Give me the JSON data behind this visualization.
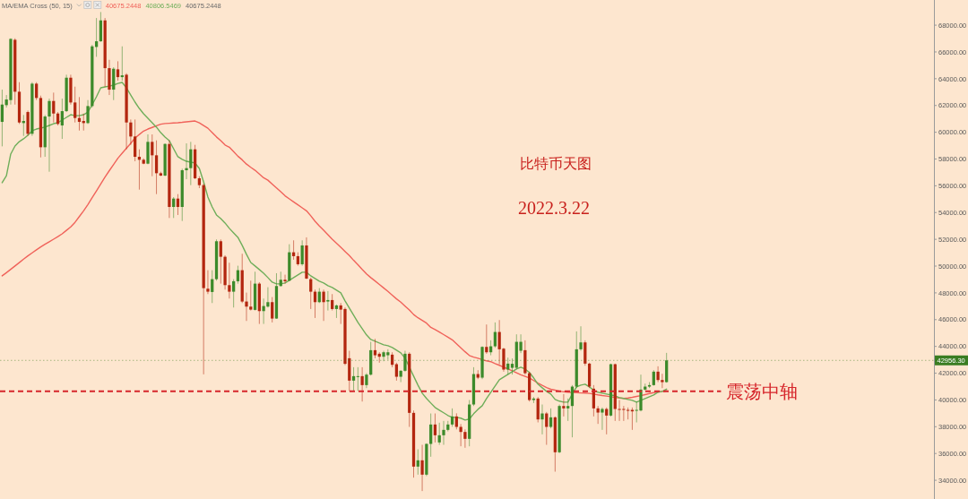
{
  "chart_data": {
    "type": "candlestick",
    "title": "比特币天图",
    "subtitle": "2022.3.22",
    "annotations": [
      "MA/EMA Cross (50, 15)",
      "40675.2448",
      "40806.5469",
      "40675.2448"
    ],
    "categories": [
      null,
      null,
      null,
      null,
      null,
      null,
      null,
      null,
      null,
      null,
      null,
      null,
      null,
      null,
      null,
      null,
      null,
      null,
      null,
      null,
      null,
      null,
      null,
      null,
      null,
      null,
      null,
      null,
      null,
      null,
      null,
      null,
      null,
      null,
      null,
      null,
      null,
      null,
      null,
      null,
      null,
      null,
      null,
      null,
      null,
      null,
      null,
      null,
      null,
      null,
      null,
      null,
      null,
      null,
      null,
      null,
      null,
      null,
      null,
      null,
      null,
      null,
      null,
      null,
      null,
      null,
      null,
      null,
      null,
      null,
      null,
      null,
      null,
      null,
      null,
      null,
      null,
      null,
      null,
      null,
      null,
      null,
      null,
      null,
      null,
      null,
      null,
      null,
      null,
      null,
      null,
      null,
      null,
      null,
      null,
      null,
      null,
      null,
      null,
      null,
      null,
      null,
      null,
      null,
      null,
      null,
      null,
      null,
      null,
      null,
      null,
      null,
      null,
      null,
      null,
      null,
      null,
      null,
      null,
      null,
      null,
      null,
      null,
      null,
      null,
      null,
      null,
      null,
      null,
      null,
      null,
      null,
      null,
      null,
      null,
      null,
      null,
      null,
      null,
      null,
      null,
      null,
      null,
      null,
      null,
      null,
      null,
      null,
      null,
      null,
      null,
      null,
      null,
      null,
      null,
      null
    ],
    "ylim": [
      32600,
      69880
    ],
    "yticks": [
      {
        "value": 34000,
        "label": "34000.00"
      },
      {
        "value": 36000,
        "label": "36000.00"
      },
      {
        "value": 38000,
        "label": "38000.00"
      },
      {
        "value": 40000,
        "label": "40000.00"
      },
      {
        "value": 42000,
        "label": "42000.00"
      },
      {
        "value": 44000,
        "label": "44000.00"
      },
      {
        "value": 46000,
        "label": "46000.00"
      },
      {
        "value": 48000,
        "label": "48000.00"
      },
      {
        "value": 50000,
        "label": "50000.00"
      },
      {
        "value": 52000,
        "label": "52000.00"
      },
      {
        "value": 54000,
        "label": "54000.00"
      },
      {
        "value": 56000,
        "label": "56000.00"
      },
      {
        "value": 58000,
        "label": "58000.00"
      },
      {
        "value": 60000,
        "label": "60000.00"
      },
      {
        "value": 62000,
        "label": "62000.00"
      },
      {
        "value": 64000,
        "label": "64000.00"
      },
      {
        "value": 66000,
        "label": "66000.00"
      },
      {
        "value": 68000,
        "label": "68000.00"
      }
    ],
    "ohlc": [
      [
        60775,
        63183,
        58946,
        62068
      ],
      [
        62023,
        62782,
        61845,
        62447
      ],
      [
        62403,
        67019,
        62068,
        66974
      ],
      [
        66907,
        67019,
        62068,
        63027
      ],
      [
        63027,
        63741,
        60619,
        60730
      ],
      [
        60685,
        61288,
        59727,
        60842
      ],
      [
        61510,
        61620,
        59727,
        59883
      ],
      [
        59883,
        63741,
        59727,
        63629
      ],
      [
        63629,
        63741,
        62403,
        62559
      ],
      [
        62559,
        62737,
        58121,
        58879
      ],
      [
        58879,
        61288,
        58166,
        61176
      ],
      [
        61176,
        62514,
        57051,
        62336
      ],
      [
        62336,
        62960,
        60730,
        61399
      ],
      [
        61399,
        61510,
        60507,
        60619
      ],
      [
        60507,
        62514,
        59504,
        61577
      ],
      [
        61577,
        64298,
        61510,
        64075
      ],
      [
        64075,
        64298,
        62068,
        62224
      ],
      [
        62224,
        63406,
        60730,
        61065
      ],
      [
        61065,
        62626,
        60128,
        60775
      ],
      [
        60842,
        61399,
        60128,
        60685
      ],
      [
        60685,
        62403,
        60619,
        61957
      ],
      [
        61957,
        66529,
        61845,
        66417
      ],
      [
        66372,
        68535,
        65636,
        66796
      ],
      [
        66796,
        68981,
        66752,
        68357
      ],
      [
        68357,
        68535,
        63406,
        64789
      ],
      [
        64789,
        65413,
        62782,
        63183
      ],
      [
        63183,
        64856,
        62403,
        64744
      ],
      [
        64700,
        65302,
        63852,
        64119
      ],
      [
        64119,
        66417,
        63852,
        64253
      ],
      [
        64298,
        64410,
        58723,
        60730
      ],
      [
        60730,
        60953,
        59058,
        59682
      ],
      [
        59682,
        60953,
        57831,
        58166
      ],
      [
        58166,
        58723,
        55713,
        57943
      ],
      [
        57943,
        58054,
        57608,
        57653
      ],
      [
        57653,
        59838,
        57608,
        59281
      ],
      [
        59281,
        59838,
        56716,
        58277
      ],
      [
        58277,
        59392,
        55378,
        56939
      ],
      [
        56939,
        57051,
        56716,
        56761
      ],
      [
        56761,
        59169,
        56716,
        59125
      ],
      [
        59125,
        59392,
        53594,
        54419
      ],
      [
        54419,
        55155,
        53594,
        55044
      ],
      [
        55044,
        55378,
        53817,
        54419
      ],
      [
        54419,
        57274,
        53371,
        57162
      ],
      [
        57162,
        59169,
        56493,
        57318
      ],
      [
        57318,
        59281,
        56047,
        58723
      ],
      [
        58723,
        59058,
        56493,
        56560
      ],
      [
        56560,
        56716,
        55824,
        56047
      ],
      [
        56047,
        56158,
        41913,
        48354
      ],
      [
        48311,
        49693,
        47909,
        48088
      ],
      [
        48066,
        49693,
        47240,
        49024
      ],
      [
        49024,
        51990,
        48913,
        51857
      ],
      [
        51857,
        51990,
        48690,
        50697
      ],
      [
        50697,
        50808,
        48244,
        48578
      ],
      [
        48578,
        50251,
        47575,
        48088
      ],
      [
        48088,
        49024,
        46906,
        48868
      ],
      [
        48868,
        50028,
        48690,
        49693
      ],
      [
        49693,
        50920,
        47240,
        47352
      ],
      [
        47352,
        48021,
        45902,
        46973
      ],
      [
        46973,
        48913,
        46683,
        46750
      ],
      [
        46728,
        49582,
        46683,
        48690
      ],
      [
        48690,
        48801,
        45679,
        46638
      ],
      [
        46638,
        47575,
        45679,
        47017
      ],
      [
        46973,
        48422,
        46906,
        47307
      ],
      [
        47307,
        47686,
        45791,
        46081
      ],
      [
        46081,
        49470,
        46059,
        48512
      ],
      [
        48512,
        49582,
        48467,
        48980
      ],
      [
        48980,
        49359,
        48690,
        48868
      ],
      [
        48913,
        51634,
        48868,
        51031
      ],
      [
        51031,
        51923,
        50474,
        50742
      ],
      [
        50742,
        51031,
        50028,
        50139
      ],
      [
        50139,
        51923,
        50028,
        51544
      ],
      [
        51544,
        52146,
        49024,
        49069
      ],
      [
        49024,
        49136,
        46794,
        48088
      ],
      [
        48088,
        48244,
        46125,
        47307
      ],
      [
        47307,
        48355,
        47240,
        48088
      ],
      [
        48088,
        48244,
        45902,
        47307
      ],
      [
        47352,
        48132,
        46683,
        47463
      ],
      [
        47463,
        47909,
        46683,
        46794
      ],
      [
        46794,
        47129,
        46125,
        47062
      ],
      [
        47062,
        47240,
        45679,
        46750
      ],
      [
        46796,
        46906,
        42600,
        42700
      ],
      [
        43116,
        43674,
        40663,
        41443
      ],
      [
        41443,
        42447,
        40663,
        41778
      ],
      [
        41733,
        42447,
        40663,
        41778
      ],
      [
        41778,
        42447,
        39882,
        41109
      ],
      [
        41109,
        42001,
        40886,
        41890
      ],
      [
        41890,
        44343,
        41822,
        43718
      ],
      [
        43718,
        44565,
        43116,
        43339
      ],
      [
        43451,
        43562,
        42782,
        43228
      ],
      [
        43228,
        43674,
        42894,
        43562
      ],
      [
        43339,
        43785,
        43005,
        43562
      ],
      [
        43384,
        43562,
        42447,
        42625
      ],
      [
        42670,
        42782,
        41443,
        41733
      ],
      [
        41733,
        42224,
        41332,
        42180
      ],
      [
        42180,
        43674,
        42113,
        43451
      ],
      [
        43451,
        43562,
        37987,
        39035
      ],
      [
        39035,
        39213,
        34196,
        35021
      ],
      [
        35021,
        36315,
        34419,
        35490
      ],
      [
        35490,
        36649,
        33193,
        34419
      ],
      [
        34419,
        36760,
        34308,
        36716
      ],
      [
        36716,
        38990,
        35757,
        38166
      ],
      [
        38166,
        38990,
        36827,
        37363
      ],
      [
        36827,
        38300,
        36649,
        37363
      ],
      [
        37363,
        38433,
        36649,
        37764
      ],
      [
        37764,
        38433,
        37653,
        38166
      ],
      [
        38166,
        39370,
        38000,
        38768
      ],
      [
        38768,
        39000,
        37800,
        37987
      ],
      [
        37987,
        38200,
        36540,
        37608
      ],
      [
        37608,
        37800,
        36426,
        37095
      ],
      [
        37095,
        39994,
        36537,
        39660
      ],
      [
        39660,
        42447,
        39548,
        41934
      ],
      [
        41934,
        42224,
        41555,
        41666
      ],
      [
        41666,
        44008,
        41555,
        43963
      ],
      [
        43963,
        45636,
        43451,
        43562
      ],
      [
        43562,
        44454,
        43339,
        44008
      ],
      [
        44008,
        45792,
        43897,
        45078
      ],
      [
        45078,
        45970,
        42670,
        43785
      ],
      [
        43830,
        43897,
        42113,
        42269
      ],
      [
        42269,
        43161,
        41890,
        42715
      ],
      [
        42400,
        43100,
        41900,
        42700
      ],
      [
        42400,
        44900,
        42300,
        44343
      ],
      [
        43674,
        44900,
        43500,
        44343
      ],
      [
        43718,
        44454,
        41890,
        42001
      ],
      [
        42001,
        42113,
        39882,
        39994
      ],
      [
        39994,
        40216,
        39771,
        40105
      ],
      [
        40105,
        40216,
        38322,
        38545
      ],
      [
        38545,
        39660,
        37429,
        38990
      ],
      [
        38990,
        39101,
        36649,
        37987
      ],
      [
        37987,
        39370,
        37876,
        38701
      ],
      [
        38701,
        38768,
        34642,
        36092
      ],
      [
        36092,
        39660,
        36025,
        39548
      ],
      [
        39548,
        40440,
        38768,
        39370
      ],
      [
        39370,
        40105,
        38433,
        39548
      ],
      [
        39548,
        41109,
        37206,
        40998
      ],
      [
        40998,
        45123,
        40886,
        43785
      ],
      [
        43785,
        45502,
        43674,
        44298
      ],
      [
        44298,
        44454,
        42559,
        42715
      ],
      [
        42715,
        42782,
        40886,
        40998
      ],
      [
        40841,
        41109,
        38768,
        39370
      ],
      [
        39370,
        39548,
        38210,
        39057
      ],
      [
        39057,
        39436,
        37764,
        39325
      ],
      [
        39325,
        39436,
        37429,
        38834
      ],
      [
        38834,
        42715,
        38768,
        42670
      ],
      [
        42670,
        42715,
        38433,
        39325
      ],
      [
        39325,
        39994,
        38433,
        39280
      ],
      [
        39325,
        39548,
        38433,
        39258
      ],
      [
        39258,
        39436,
        38545,
        39213
      ],
      [
        39258,
        39436,
        37764,
        39147
      ],
      [
        39213,
        39882,
        38322,
        39258
      ],
      [
        39213,
        41890,
        39147,
        40775
      ],
      [
        40775,
        41220,
        40708,
        40998
      ],
      [
        40998,
        41332,
        40886,
        41109
      ],
      [
        41109,
        42224,
        41064,
        42113
      ],
      [
        42113,
        42514,
        41332,
        41488
      ],
      [
        41488,
        41957,
        40886,
        41332
      ],
      [
        41332,
        43517,
        41287,
        42956.3
      ]
    ],
    "colors": [
      "#3c8a2a",
      "#3c8a2a",
      "#3c8a2a",
      "#b3260f",
      "#b3260f",
      "#3c8a2a",
      "#b3260f",
      "#3c8a2a",
      "#b3260f",
      "#b3260f",
      "#3c8a2a",
      "#3c8a2a",
      "#b3260f",
      "#b3260f",
      "#3c8a2a",
      "#3c8a2a",
      "#b3260f",
      "#b3260f",
      "#b3260f",
      "#b3260f",
      "#3c8a2a",
      "#3c8a2a",
      "#3c8a2a",
      "#3c8a2a",
      "#b3260f",
      "#b3260f",
      "#3c8a2a",
      "#b3260f",
      "#3c8a2a",
      "#b3260f",
      "#b3260f",
      "#b3260f",
      "#b3260f",
      "#b3260f",
      "#3c8a2a",
      "#b3260f",
      "#b3260f",
      "#b3260f",
      "#3c8a2a",
      "#b3260f",
      "#3c8a2a",
      "#b3260f",
      "#3c8a2a",
      "#3c8a2a",
      "#3c8a2a",
      "#b3260f",
      "#b3260f",
      "#b3260f",
      "#b3260f",
      "#3c8a2a",
      "#3c8a2a",
      "#b3260f",
      "#b3260f",
      "#b3260f",
      "#3c8a2a",
      "#3c8a2a",
      "#b3260f",
      "#b3260f",
      "#b3260f",
      "#3c8a2a",
      "#b3260f",
      "#3c8a2a",
      "#3c8a2a",
      "#b3260f",
      "#3c8a2a",
      "#3c8a2a",
      "#b3260f",
      "#3c8a2a",
      "#b3260f",
      "#b3260f",
      "#3c8a2a",
      "#b3260f",
      "#b3260f",
      "#b3260f",
      "#3c8a2a",
      "#b3260f",
      "#3c8a2a",
      "#b3260f",
      "#3c8a2a",
      "#b3260f",
      "#b3260f",
      "#b3260f",
      "#3c8a2a",
      "#3c8a2a",
      "#b3260f",
      "#3c8a2a",
      "#3c8a2a",
      "#b3260f",
      "#b3260f",
      "#3c8a2a",
      "#3c8a2a",
      "#b3260f",
      "#b3260f",
      "#3c8a2a",
      "#3c8a2a",
      "#b3260f",
      "#b3260f",
      "#3c8a2a",
      "#b3260f",
      "#3c8a2a",
      "#3c8a2a",
      "#b3260f",
      "#3c8a2a",
      "#3c8a2a",
      "#3c8a2a",
      "#3c8a2a",
      "#b3260f",
      "#b3260f",
      "#b3260f",
      "#3c8a2a",
      "#3c8a2a",
      "#b3260f",
      "#3c8a2a",
      "#b3260f",
      "#3c8a2a",
      "#3c8a2a",
      "#b3260f",
      "#b3260f",
      "#3c8a2a",
      "#3c8a2a",
      "#3c8a2a",
      "#3c8a2a",
      "#b3260f",
      "#b3260f",
      "#3c8a2a",
      "#b3260f",
      "#3c8a2a",
      "#b3260f",
      "#3c8a2a",
      "#b3260f",
      "#3c8a2a",
      "#b3260f",
      "#3c8a2a",
      "#3c8a2a",
      "#3c8a2a",
      "#3c8a2a",
      "#b3260f",
      "#b3260f",
      "#b3260f",
      "#b3260f",
      "#3c8a2a",
      "#b3260f",
      "#3c8a2a",
      "#b3260f",
      "#b3260f",
      "#b3260f",
      "#b3260f",
      "#b3260f",
      "#3c8a2a",
      "#3c8a2a",
      "#3c8a2a",
      "#3c8a2a",
      "#3c8a2a",
      "#b3260f",
      "#b3260f",
      "#3c8a2a"
    ],
    "series": [
      {
        "type": "line",
        "color": "#f0625a",
        "values": [
          49270,
          49510,
          49760,
          50010,
          50260,
          50520,
          50760,
          50990,
          51210,
          51430,
          51630,
          51820,
          52010,
          52200,
          52410,
          52670,
          52930,
          53270,
          53700,
          54130,
          54600,
          55110,
          55620,
          56130,
          56650,
          57130,
          57590,
          58060,
          58430,
          58800,
          59170,
          59570,
          59830,
          60090,
          60240,
          60360,
          60480,
          60600,
          60650,
          60670,
          60690,
          60710,
          60740,
          60780,
          60810,
          60840,
          60700,
          60500,
          60300,
          59980,
          59650,
          59370,
          59050,
          58880,
          58550,
          58210,
          57940,
          57620,
          57380,
          57160,
          56880,
          56600,
          56420,
          56130,
          55840,
          55550,
          55250,
          55020,
          54800,
          54580,
          54350,
          54130,
          53760,
          53350,
          53000,
          52680,
          52340,
          52010,
          51710,
          51400,
          51090,
          50790,
          50430,
          50100,
          49750,
          49420,
          49140,
          48890,
          48630,
          48370,
          48110,
          47830,
          47550,
          47310,
          47010,
          46720,
          46380,
          46140,
          45940,
          45740,
          45420,
          45260,
          45080,
          44880,
          44690,
          44490,
          44190,
          43900,
          43600,
          43320,
          43200,
          43120,
          43010,
          42920,
          42860,
          42720,
          42590,
          42450,
          42320,
          42180,
          42030,
          41880,
          41760,
          41640,
          41450,
          41260,
          41090,
          40930,
          40800,
          40730,
          40660,
          40610,
          40580,
          40560,
          40540,
          40520,
          40510,
          40490,
          40440,
          40380,
          40330,
          40290,
          40240,
          40190,
          40150,
          40110,
          40150,
          40200,
          40260,
          40320,
          40400,
          40480,
          40550,
          40600,
          40640,
          40680
        ]
      },
      {
        "type": "line",
        "color": "#6fae5a",
        "values": [
          56230,
          56760,
          58370,
          58970,
          59300,
          59510,
          59770,
          60110,
          60240,
          60310,
          60380,
          60510,
          60640,
          60710,
          60910,
          61110,
          61310,
          61240,
          61240,
          61310,
          61510,
          62050,
          62650,
          63320,
          63390,
          63450,
          63520,
          63650,
          63720,
          63320,
          62780,
          62250,
          61780,
          61380,
          61040,
          60710,
          60380,
          59970,
          59640,
          59370,
          58770,
          58170,
          57970,
          57830,
          57770,
          57700,
          57300,
          56290,
          55160,
          54420,
          53820,
          53550,
          53220,
          52820,
          52480,
          52150,
          51550,
          50880,
          50270,
          50010,
          49740,
          49470,
          49140,
          48800,
          48670,
          48670,
          48740,
          48940,
          49140,
          49340,
          49540,
          49540,
          49270,
          49070,
          48870,
          48740,
          48540,
          48400,
          48200,
          48000,
          47400,
          46860,
          46330,
          45790,
          45320,
          44860,
          44520,
          44390,
          44250,
          44120,
          44050,
          43920,
          43720,
          43520,
          43120,
          42450,
          41780,
          41110,
          40510,
          40110,
          39770,
          39440,
          39240,
          39040,
          38840,
          38700,
          38700,
          38640,
          38500,
          38570,
          38970,
          39300,
          39570,
          40110,
          40580,
          41040,
          41510,
          41710,
          41910,
          42110,
          42310,
          42450,
          42310,
          42050,
          41650,
          41180,
          40910,
          40640,
          40440,
          40040,
          39910,
          39840,
          39840,
          40440,
          40980,
          41110,
          41180,
          40980,
          40710,
          40580,
          40510,
          40440,
          40370,
          40310,
          40170,
          40110,
          40040,
          39970,
          39840,
          39970,
          40110,
          40240,
          40370,
          40580,
          40640,
          40810
        ]
      }
    ],
    "ref_lines": [
      {
        "axis": "y",
        "value": 42956.3,
        "label": "42956.30",
        "color": "#3a7d22",
        "line_style": "dotted"
      },
      {
        "axis": "y",
        "value": 40650,
        "label": "震荡中轴",
        "color": "#d6262b",
        "line_style": "dashed"
      }
    ]
  }
}
